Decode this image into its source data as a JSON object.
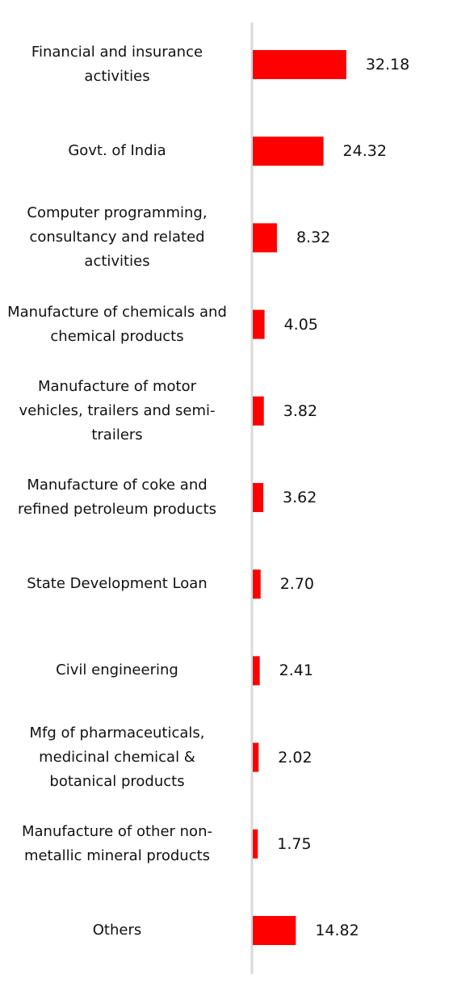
{
  "chart_data": {
    "type": "bar",
    "orientation": "horizontal",
    "color": "#ff0000",
    "categories": [
      "Financial and insurance activities",
      "Govt. of India",
      "Computer programming, consultancy and related activities",
      "Manufacture of chemicals and chemical products",
      "Manufacture of motor vehicles, trailers and semi-trailers",
      "Manufacture of coke and refined petroleum products",
      "State Development Loan",
      "Civil engineering",
      "Mfg of pharmaceuticals, medicinal chemical & botanical products",
      "Manufacture of other non-metallic mineral products",
      "Others"
    ],
    "values": [
      32.18,
      24.32,
      8.32,
      4.05,
      3.82,
      3.62,
      2.7,
      2.41,
      2.02,
      1.75,
      14.82
    ],
    "value_labels": [
      "32.18",
      "24.32",
      "8.32",
      "4.05",
      "3.82",
      "3.62",
      "2.70",
      "2.41",
      "2.02",
      "1.75",
      "14.82"
    ]
  }
}
